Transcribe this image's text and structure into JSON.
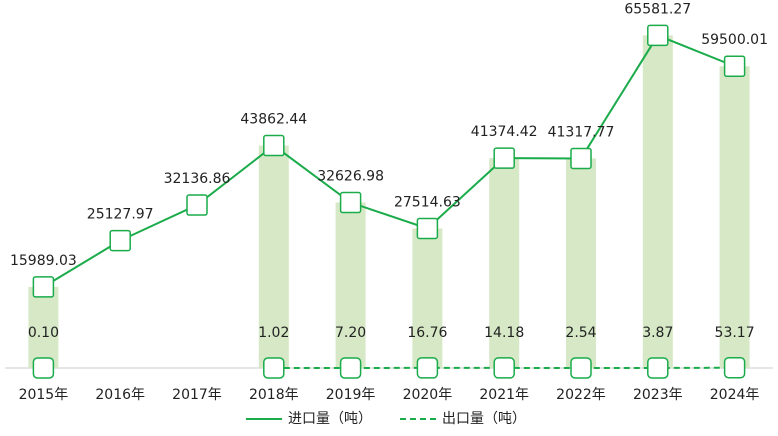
{
  "chart_data": {
    "type": "line",
    "categories": [
      "2015年",
      "2016年",
      "2017年",
      "2018年",
      "2019年",
      "2020年",
      "2021年",
      "2022年",
      "2023年",
      "2024年"
    ],
    "series": [
      {
        "name": "进口量（吨）",
        "color": "#1aab4a",
        "values": [
          15989.03,
          25127.97,
          32136.86,
          43862.44,
          32626.98,
          27514.63,
          41374.42,
          41317.77,
          65581.27,
          59500.01
        ]
      },
      {
        "name": "出口量（吨）",
        "color": "#1aab4a",
        "dashed": true,
        "values": [
          0.1,
          null,
          null,
          1.02,
          7.2,
          16.76,
          14.18,
          2.54,
          3.87,
          53.17
        ],
        "value_labels": [
          "0.10",
          null,
          null,
          "1.02",
          "7.20",
          "16.76",
          "14.18",
          "2.54",
          "3.87",
          "53.17"
        ]
      }
    ],
    "bar_color": "#d6e8c6",
    "ylim": [
      0,
      70000
    ]
  }
}
